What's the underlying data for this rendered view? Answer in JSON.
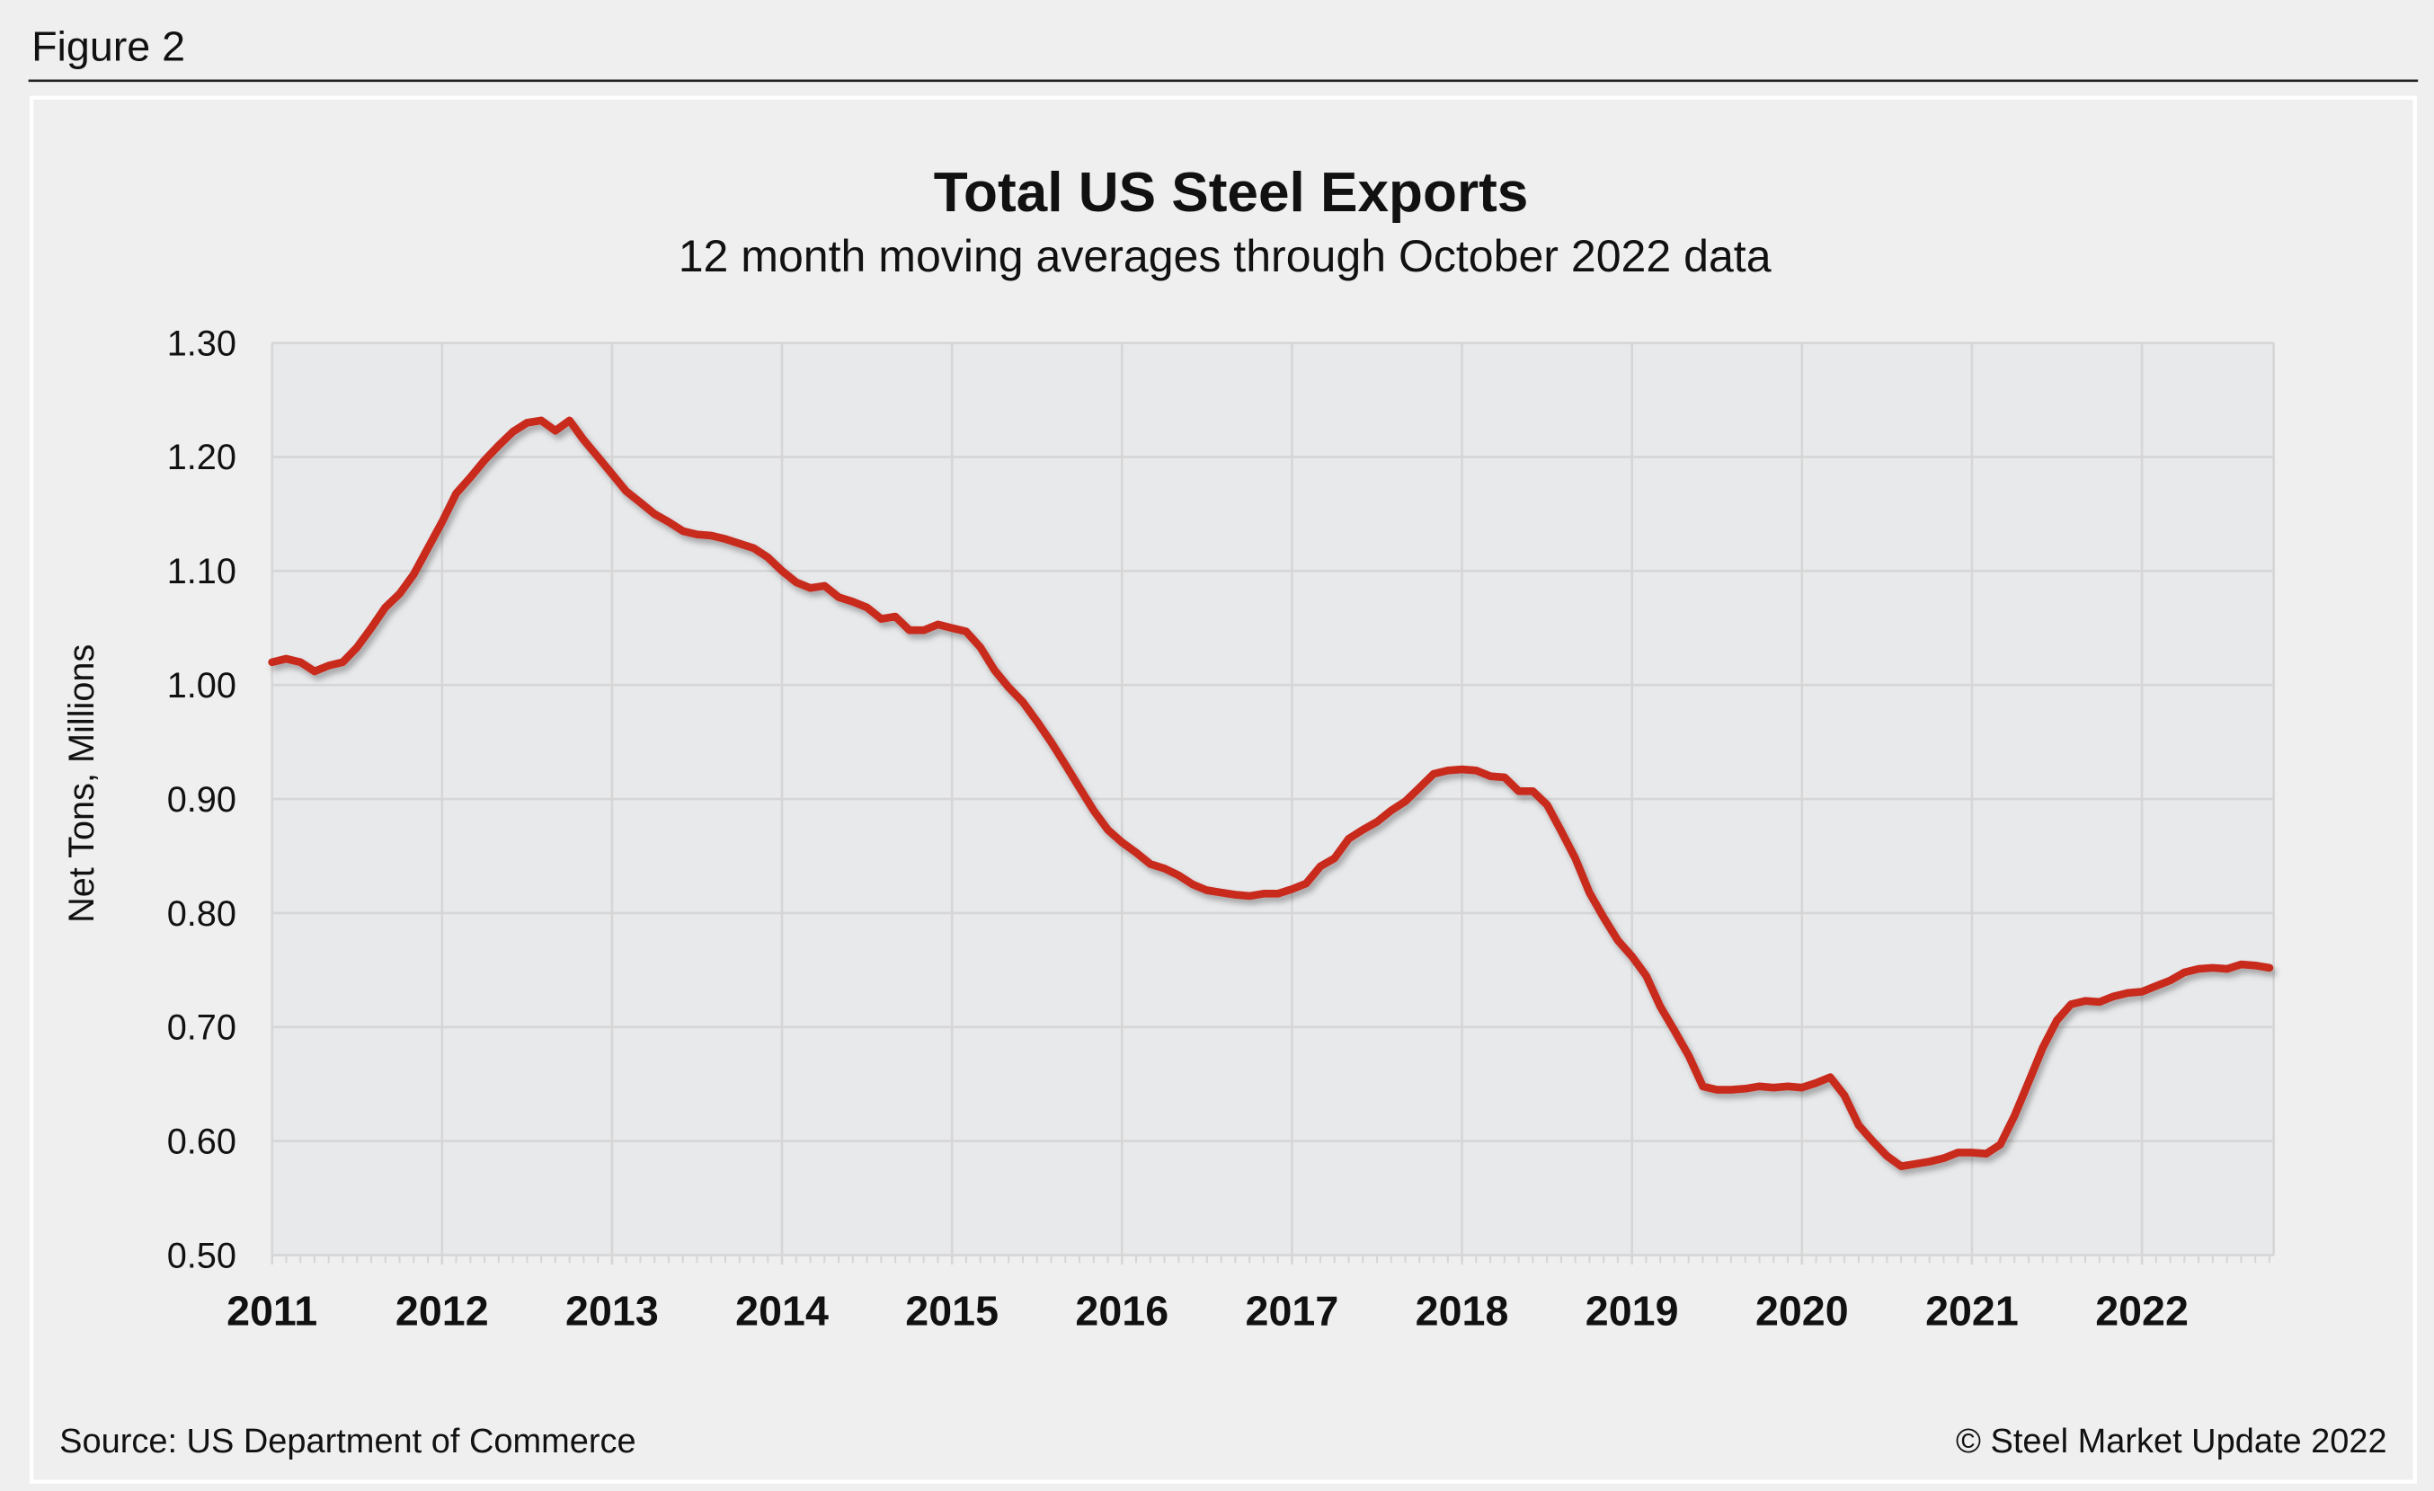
{
  "figure_label": "Figure 2",
  "source": "Source: US Department of Commerce",
  "copyright": "© Steel Market Update 2022",
  "colors": {
    "line": "#c8291e",
    "plot_bg": "#e8e9eb",
    "page_bg": "#efefef",
    "grid": "#d6d6d6"
  },
  "chart_data": {
    "type": "line",
    "title": "Total US Steel Exports",
    "subtitle": "12 month moving averages through October 2022 data",
    "ylabel": "Net Tons, Millions",
    "xlabel": "",
    "ylim": [
      0.5,
      1.3
    ],
    "yticks": [
      "0.50",
      "0.60",
      "0.70",
      "0.80",
      "0.90",
      "1.00",
      "1.10",
      "1.20",
      "1.30"
    ],
    "xticks": [
      "2011",
      "2012",
      "2013",
      "2014",
      "2015",
      "2016",
      "2017",
      "2018",
      "2019",
      "2020",
      "2021",
      "2022"
    ],
    "x_start": "2011-01",
    "x_end": "2022-10",
    "frequency": "monthly",
    "grid": true,
    "series": [
      {
        "values": [
          1.02,
          1.023,
          1.02,
          1.012,
          1.017,
          1.02,
          1.033,
          1.05,
          1.068,
          1.08,
          1.097,
          1.12,
          1.143,
          1.168,
          1.182,
          1.197,
          1.21,
          1.222,
          1.23,
          1.232,
          1.223,
          1.232,
          1.215,
          1.2,
          1.185,
          1.17,
          1.16,
          1.15,
          1.143,
          1.135,
          1.132,
          1.131,
          1.128,
          1.124,
          1.12,
          1.112,
          1.1,
          1.09,
          1.085,
          1.087,
          1.077,
          1.073,
          1.068,
          1.058,
          1.06,
          1.048,
          1.048,
          1.053,
          1.05,
          1.047,
          1.033,
          1.013,
          0.998,
          0.985,
          0.968,
          0.95,
          0.93,
          0.91,
          0.89,
          0.873,
          0.862,
          0.853,
          0.843,
          0.839,
          0.833,
          0.825,
          0.82,
          0.818,
          0.816,
          0.815,
          0.817,
          0.817,
          0.821,
          0.826,
          0.841,
          0.848,
          0.865,
          0.873,
          0.88,
          0.89,
          0.898,
          0.91,
          0.922,
          0.925,
          0.926,
          0.925,
          0.92,
          0.919,
          0.907,
          0.907,
          0.895,
          0.872,
          0.848,
          0.818,
          0.796,
          0.776,
          0.762,
          0.745,
          0.718,
          0.697,
          0.675,
          0.648,
          0.645,
          0.645,
          0.646,
          0.648,
          0.647,
          0.648,
          0.647,
          0.651,
          0.656,
          0.64,
          0.614,
          0.6,
          0.587,
          0.578,
          0.58,
          0.582,
          0.585,
          0.59,
          0.59,
          0.589,
          0.597,
          0.622,
          0.652,
          0.682,
          0.706,
          0.72,
          0.723,
          0.722,
          0.727,
          0.73,
          0.731,
          0.736,
          0.741,
          0.748,
          0.751,
          0.752,
          0.751,
          0.755,
          0.754,
          0.752
        ]
      }
    ]
  }
}
